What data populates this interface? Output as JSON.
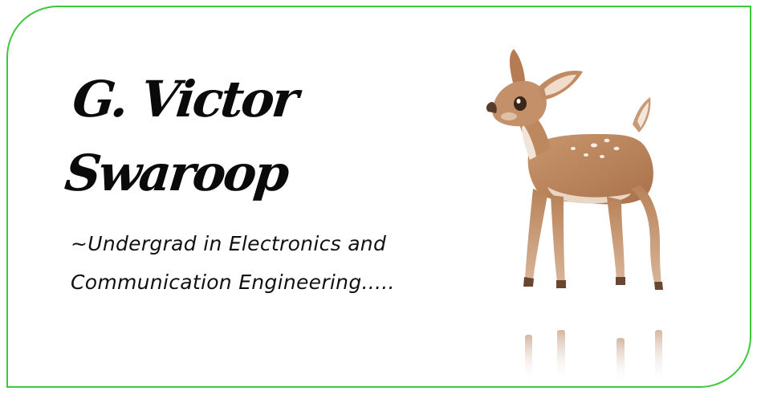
{
  "card": {
    "border_color": "#3cc83a",
    "name_line1": "G. Victor",
    "name_line2": "Swaroop",
    "tagline_line1": "~Undergrad in Electronics and",
    "tagline_line2": "Communication Engineering.....",
    "illustration": "fawn-watercolor-illustration"
  }
}
